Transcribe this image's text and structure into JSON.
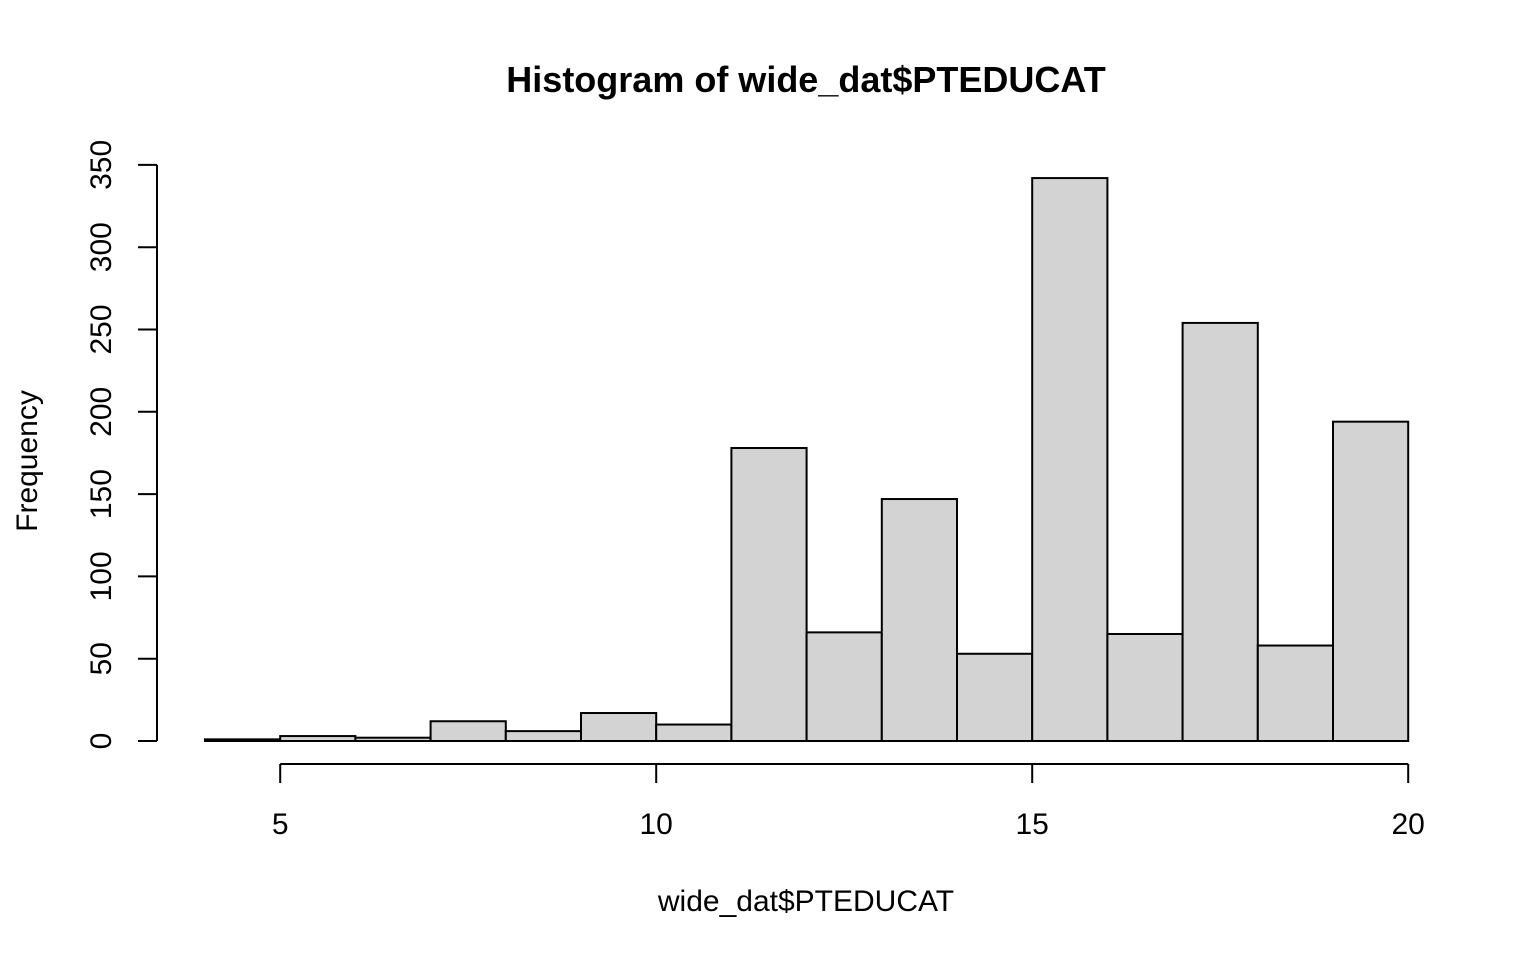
{
  "chart_data": {
    "type": "histogram",
    "title": "Histogram of wide_dat$PTEDUCAT",
    "xlabel": "wide_dat$PTEDUCAT",
    "ylabel": "Frequency",
    "xlim": [
      4,
      20
    ],
    "ylim": [
      0,
      350
    ],
    "x_ticks": [
      5,
      10,
      15,
      20
    ],
    "y_ticks": [
      0,
      50,
      100,
      150,
      200,
      250,
      300,
      350
    ],
    "bins": [
      {
        "start": 4,
        "end": 5,
        "count": 1
      },
      {
        "start": 5,
        "end": 6,
        "count": 3
      },
      {
        "start": 6,
        "end": 7,
        "count": 2
      },
      {
        "start": 7,
        "end": 8,
        "count": 12
      },
      {
        "start": 8,
        "end": 9,
        "count": 6
      },
      {
        "start": 9,
        "end": 10,
        "count": 17
      },
      {
        "start": 10,
        "end": 11,
        "count": 10
      },
      {
        "start": 11,
        "end": 12,
        "count": 178
      },
      {
        "start": 12,
        "end": 13,
        "count": 66
      },
      {
        "start": 13,
        "end": 14,
        "count": 147
      },
      {
        "start": 14,
        "end": 15,
        "count": 53
      },
      {
        "start": 15,
        "end": 16,
        "count": 342
      },
      {
        "start": 16,
        "end": 17,
        "count": 65
      },
      {
        "start": 17,
        "end": 18,
        "count": 254
      },
      {
        "start": 18,
        "end": 19,
        "count": 58
      },
      {
        "start": 19,
        "end": 20,
        "count": 194
      }
    ],
    "grid": false,
    "legend": "none",
    "colors": {
      "bar_fill": "#d3d3d3",
      "bar_stroke": "#000000"
    }
  }
}
